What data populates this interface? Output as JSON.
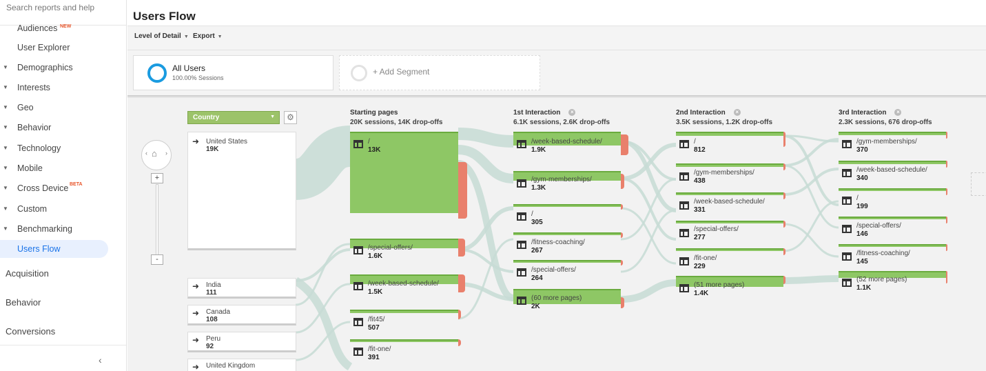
{
  "sidebar": {
    "search_placeholder": "Search reports and help",
    "items": [
      {
        "label": "Audiences",
        "badge": "NEW",
        "caret": false
      },
      {
        "label": "User Explorer",
        "caret": false
      },
      {
        "label": "Demographics",
        "caret": true
      },
      {
        "label": "Interests",
        "caret": true
      },
      {
        "label": "Geo",
        "caret": true
      },
      {
        "label": "Behavior",
        "caret": true
      },
      {
        "label": "Technology",
        "caret": true
      },
      {
        "label": "Mobile",
        "caret": true
      },
      {
        "label": "Cross Device",
        "badge": "BETA",
        "caret": true
      },
      {
        "label": "Custom",
        "caret": true
      },
      {
        "label": "Benchmarking",
        "caret": true
      },
      {
        "label": "Users Flow",
        "caret": false,
        "active": true
      }
    ],
    "sections": [
      "Acquisition",
      "Behavior",
      "Conversions"
    ],
    "collapse_icon": "chevron-left-icon"
  },
  "header": {
    "title": "Users Flow",
    "toolbar": {
      "level_of_detail": "Level of Detail",
      "export": "Export"
    }
  },
  "segments": {
    "all_users": {
      "title": "All Users",
      "sub": "100.00% Sessions"
    },
    "add_segment": "+ Add Segment"
  },
  "flow": {
    "dimension_select": "Country",
    "countries": [
      {
        "name": "United States",
        "value": "19K"
      },
      {
        "name": "India",
        "value": "111"
      },
      {
        "name": "Canada",
        "value": "108"
      },
      {
        "name": "Peru",
        "value": "92"
      },
      {
        "name": "United Kingdom",
        "value": ""
      }
    ],
    "columns": [
      {
        "title": "Starting pages",
        "stats": "20K sessions, 14K drop-offs",
        "removable": false,
        "nodes": [
          {
            "name": "/",
            "value": "13K"
          },
          {
            "name": "/special-offers/",
            "value": "1.6K"
          },
          {
            "name": "/week-based-schedule/",
            "value": "1.5K"
          },
          {
            "name": "/fit45/",
            "value": "507"
          },
          {
            "name": "/fit-one/",
            "value": "391"
          }
        ]
      },
      {
        "title": "1st Interaction",
        "stats": "6.1K sessions, 2.6K drop-offs",
        "removable": true,
        "nodes": [
          {
            "name": "/week-based-schedule/",
            "value": "1.9K"
          },
          {
            "name": "/gym-memberships/",
            "value": "1.3K"
          },
          {
            "name": "/",
            "value": "305"
          },
          {
            "name": "/fitness-coaching/",
            "value": "267"
          },
          {
            "name": "/special-offers/",
            "value": "264"
          },
          {
            "name": "(60 more pages)",
            "value": "2K"
          }
        ]
      },
      {
        "title": "2nd Interaction",
        "stats": "3.5K sessions, 1.2K drop-offs",
        "removable": true,
        "nodes": [
          {
            "name": "/",
            "value": "812"
          },
          {
            "name": "/gym-memberships/",
            "value": "438"
          },
          {
            "name": "/week-based-schedule/",
            "value": "331"
          },
          {
            "name": "/special-offers/",
            "value": "277"
          },
          {
            "name": "/fit-one/",
            "value": "229"
          },
          {
            "name": "(51 more pages)",
            "value": "1.4K"
          }
        ]
      },
      {
        "title": "3rd Interaction",
        "stats": "2.3K sessions, 676 drop-offs",
        "removable": true,
        "nodes": [
          {
            "name": "/gym-memberships/",
            "value": "370"
          },
          {
            "name": "/week-based-schedule/",
            "value": "340"
          },
          {
            "name": "/",
            "value": "199"
          },
          {
            "name": "/special-offers/",
            "value": "146"
          },
          {
            "name": "/fitness-coaching/",
            "value": "145"
          },
          {
            "name": "(52 more pages)",
            "value": "1.1K"
          }
        ]
      }
    ]
  },
  "colors": {
    "accent": "#1a73e8",
    "node_green": "#8ec765",
    "dropoff_red": "#e9806c",
    "link": "#c9dcd6"
  }
}
